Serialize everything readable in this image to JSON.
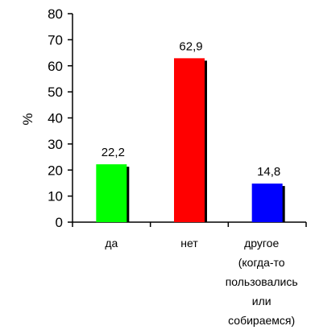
{
  "chart_data": {
    "type": "bar",
    "ylabel": "%",
    "ylim": [
      0,
      80
    ],
    "yticks": [
      0,
      10,
      20,
      30,
      40,
      50,
      60,
      70,
      80
    ],
    "categories": [
      "да",
      "нет",
      "другое\n(когда-то\nпользовались\nили\nсобираемся)"
    ],
    "values": [
      22.2,
      62.9,
      14.8
    ],
    "value_labels": [
      "22,2",
      "62,9",
      "14,8"
    ],
    "colors": [
      "#00ff00",
      "#ff0000",
      "#0000ff"
    ],
    "grid": false,
    "legend": "none"
  }
}
